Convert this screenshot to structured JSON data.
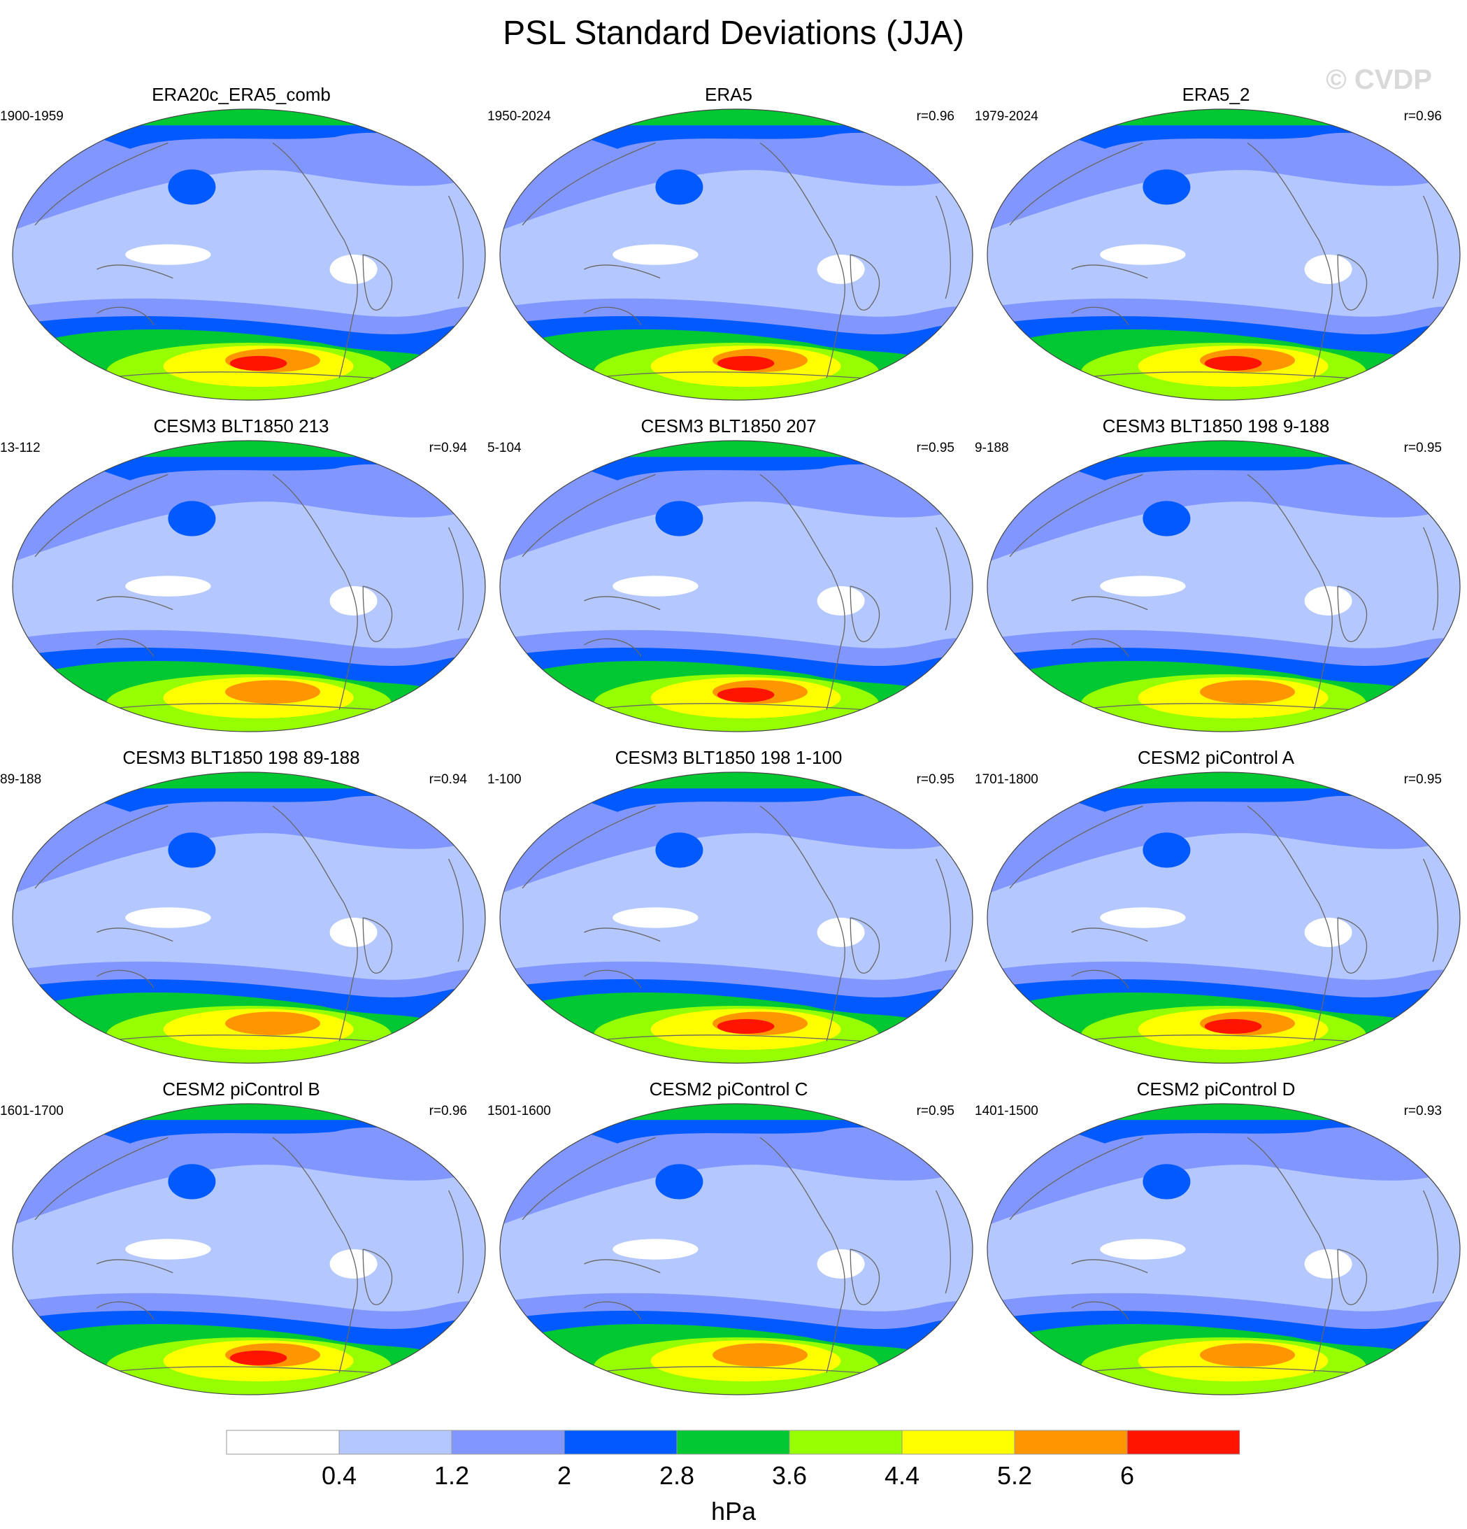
{
  "title": "PSL Standard Deviations (JJA)",
  "watermark": "© CVDP",
  "panels": [
    {
      "title": "ERA20c_ERA5_comb",
      "period": "1900-1959",
      "r": "",
      "max": 6
    },
    {
      "title": "ERA5",
      "period": "1950-2024",
      "r": "r=0.96",
      "max": 5
    },
    {
      "title": "ERA5_2",
      "period": "1979-2024",
      "r": "r=0.96",
      "max": 6
    },
    {
      "title": "CESM3 BLT1850 213",
      "period": "13-112",
      "r": "r=0.94",
      "max": 4
    },
    {
      "title": "CESM3 BLT1850 207",
      "period": "5-104",
      "r": "r=0.95",
      "max": 5
    },
    {
      "title": "CESM3 BLT1850 198 9-188",
      "period": "9-188",
      "r": "r=0.95",
      "max": 4
    },
    {
      "title": "CESM3 BLT1850 198 89-188",
      "period": "89-188",
      "r": "r=0.94",
      "max": 4
    },
    {
      "title": "CESM3 BLT1850 198 1-100",
      "period": "1-100",
      "r": "r=0.95",
      "max": 5
    },
    {
      "title": "CESM2 piControl A",
      "period": "1701-1800",
      "r": "r=0.95",
      "max": 5
    },
    {
      "title": "CESM2 piControl B",
      "period": "1601-1700",
      "r": "r=0.96",
      "max": 5
    },
    {
      "title": "CESM2 piControl C",
      "period": "1501-1600",
      "r": "r=0.95",
      "max": 4
    },
    {
      "title": "CESM2 piControl D",
      "period": "1401-1500",
      "r": "r=0.93",
      "max": 4
    }
  ],
  "colorbar": {
    "colors": [
      "#ffffff",
      "#b4c8ff",
      "#8296ff",
      "#005aff",
      "#00c832",
      "#96ff00",
      "#ffff00",
      "#ff9600",
      "#ff1400"
    ],
    "tick_labels": [
      "0.4",
      "1.2",
      "2",
      "2.8",
      "3.6",
      "4.4",
      "5.2",
      "6"
    ],
    "units": "hPa"
  }
}
